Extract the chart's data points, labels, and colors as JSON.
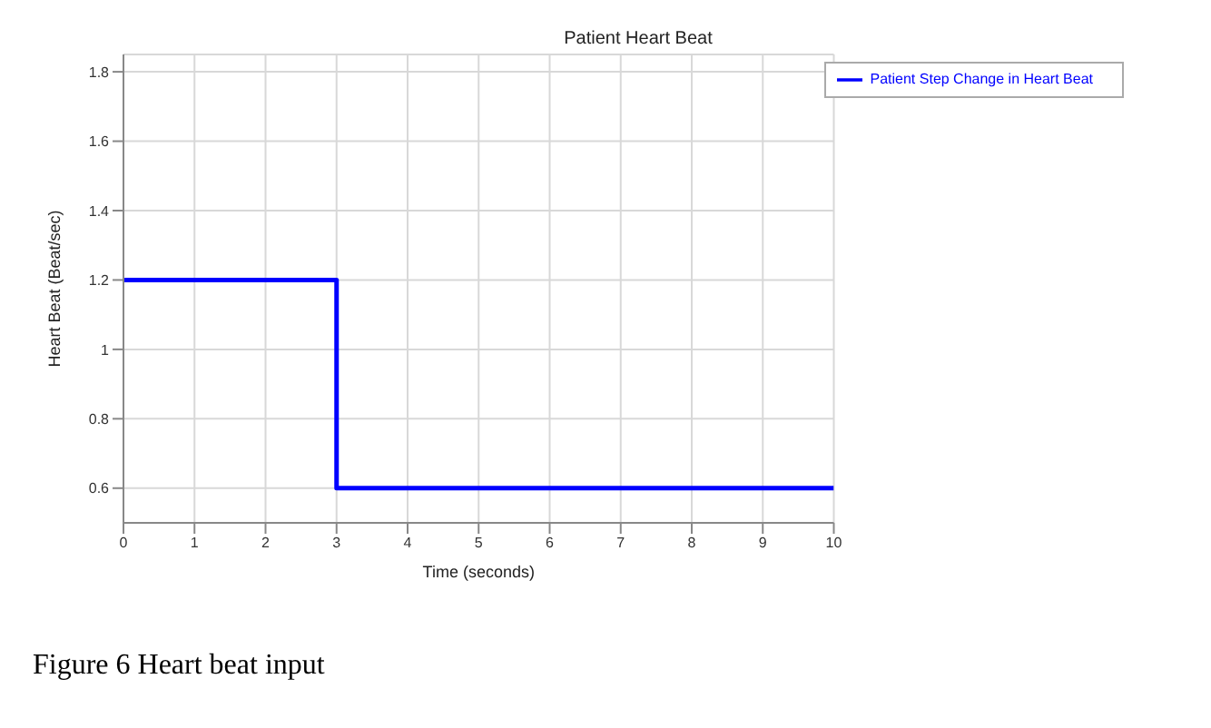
{
  "chart_data": {
    "type": "step",
    "title": "Patient Heart Beat",
    "xlabel": "Time (seconds)",
    "ylabel": "Heart Beat (Beat/sec)",
    "x": [
      0,
      3,
      10
    ],
    "series": [
      {
        "name": "Patient Step Change in Heart Beat",
        "color": "#0000ff",
        "values": [
          1.2,
          0.6,
          0.6
        ]
      }
    ],
    "xlim": [
      0,
      10
    ],
    "xticks": [
      0,
      1,
      2,
      3,
      4,
      5,
      6,
      7,
      8,
      9,
      10
    ],
    "ylim": [
      0.5,
      1.85
    ],
    "yticks": [
      0.6,
      0.8,
      1,
      1.2,
      1.4,
      1.6,
      1.8
    ],
    "grid": true,
    "legend": "top right",
    "marker": "none",
    "line_style": "solid",
    "annotations": [
      "Figure 6 Heart beat input"
    ]
  }
}
